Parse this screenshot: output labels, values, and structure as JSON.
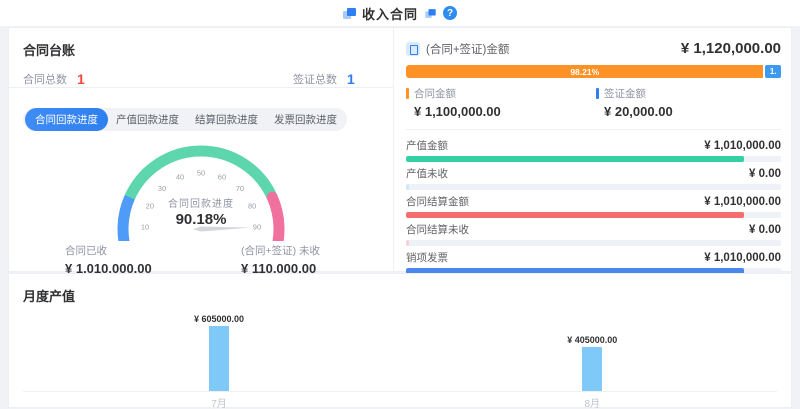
{
  "header": {
    "title": "收入合同",
    "help_label": "?"
  },
  "ledger": {
    "title": "合同台账",
    "items": [
      {
        "label": "合同总数",
        "value": "1",
        "color": "#f5483b"
      },
      {
        "label": "签证总数",
        "value": "1",
        "color": "#2e7ff0"
      }
    ]
  },
  "progress_tabs": [
    {
      "label": "合同回款进度",
      "active": true
    },
    {
      "label": "产值回款进度",
      "active": false
    },
    {
      "label": "结算回款进度",
      "active": false
    },
    {
      "label": "发票回款进度",
      "active": false
    }
  ],
  "gauge_card": {
    "label": "合同回款进度",
    "value_text": "90.18%"
  },
  "received": [
    {
      "label": "合同已收",
      "value": "¥ 1,010,000.00"
    },
    {
      "label": "(合同+签证) 未收",
      "value": "¥ 110,000.00"
    }
  ],
  "summary": {
    "title": "(合同+签证)金额",
    "total": "¥ 1,120,000.00",
    "bar": {
      "pct": 98.21,
      "label": "98.21%",
      "rest_label": "1.",
      "fill_color": "#ff9226",
      "rest_color": "#3d9af0"
    },
    "legend": [
      {
        "label": "合同金额",
        "value": "¥ 1,100,000.00",
        "color": "#ff9226"
      },
      {
        "label": "签证金额",
        "value": "¥ 20,000.00",
        "color": "#2e7ff0"
      }
    ]
  },
  "metrics": [
    {
      "label": "产值金额",
      "value": "¥ 1,010,000.00",
      "pct": 90.18,
      "color": "#31d0a5"
    },
    {
      "label": "产值未收",
      "value": "¥ 0.00",
      "pct": 0.8,
      "color": "#cfe7f8"
    },
    {
      "label": "合同结算金额",
      "value": "¥ 1,010,000.00",
      "pct": 90.18,
      "color": "#f56c6c"
    },
    {
      "label": "合同结算未收",
      "value": "¥ 0.00",
      "pct": 0.8,
      "color": "#fad0d3"
    },
    {
      "label": "销项发票",
      "value": "¥ 1,010,000.00",
      "pct": 90.18,
      "color": "#4a86ec"
    },
    {
      "label": "发票未收",
      "value": "¥ 0.00",
      "pct": 0.8,
      "color": "#cfdcf5"
    }
  ],
  "monthly": {
    "title": "月度产值"
  },
  "chart_data": [
    {
      "type": "gauge",
      "title": "合同回款进度",
      "value": 90.18,
      "min": 0,
      "max": 100,
      "unit": "%",
      "ticks": [
        0,
        10,
        20,
        30,
        40,
        50,
        60,
        70,
        80,
        90,
        100
      ],
      "segments": [
        {
          "from": 0,
          "to": 20,
          "color": "#4f9bf8"
        },
        {
          "from": 20,
          "to": 80,
          "color": "#5dd6ae"
        },
        {
          "from": 80,
          "to": 100,
          "color": "#f0709e"
        }
      ],
      "start_angle": 200,
      "end_angle": -20,
      "needle_color": "#d3d6dc"
    },
    {
      "type": "bar",
      "title": "月度产值",
      "categories": [
        "7月",
        "8月"
      ],
      "values": [
        605000,
        405000
      ],
      "value_labels": [
        "¥ 605000.00",
        "¥ 405000.00"
      ],
      "bar_color": "#7fc9f8",
      "ylim": [
        0,
        650000
      ],
      "legend_position": "none",
      "grid": false
    }
  ]
}
